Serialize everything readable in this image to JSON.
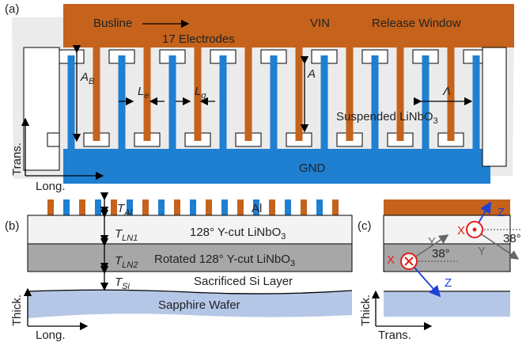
{
  "panel_a": {
    "label": "(a)",
    "busline": "Busline",
    "vin": "VIN",
    "release_window": "Release Window",
    "electrodes": "17 Electrodes",
    "ab": {
      "base": "A",
      "sub": "B"
    },
    "le": {
      "base": "L",
      "sub": "e"
    },
    "lg": {
      "base": "L",
      "sub": "g"
    },
    "aperture": "A",
    "pitch": "Λ",
    "suspended": {
      "base": "Suspended LiNbO",
      "sub": "3"
    },
    "gnd": "GND",
    "axis_y": "Trans.",
    "axis_x": "Long."
  },
  "panel_b": {
    "label": "(b)",
    "t_al": {
      "base": "T",
      "sub": "Al"
    },
    "al": "Al",
    "t_ln1": {
      "base": "T",
      "sub": "LN1"
    },
    "layer1": {
      "base": "128° Y-cut LiNbO",
      "sub": "3"
    },
    "t_ln2": {
      "base": "T",
      "sub": "LN2"
    },
    "layer2": {
      "base": "Rotated 128° Y-cut LiNbO",
      "sub": "3"
    },
    "t_si": {
      "base": "T",
      "sub": "Si"
    },
    "layer3": "Sacrificed Si Layer",
    "substrate": "Sapphire Wafer",
    "axis_y": "Thick.",
    "axis_x": "Long."
  },
  "panel_c": {
    "label": "(c)",
    "z_top": "Z",
    "x_top": "X",
    "angle_top": "38°",
    "y_top": "Y",
    "y_bottom": "Y",
    "x_bottom": "X",
    "angle_bottom": "38°",
    "z_bottom": "Z",
    "axis_y": "Thick.",
    "axis_x": "Trans."
  }
}
